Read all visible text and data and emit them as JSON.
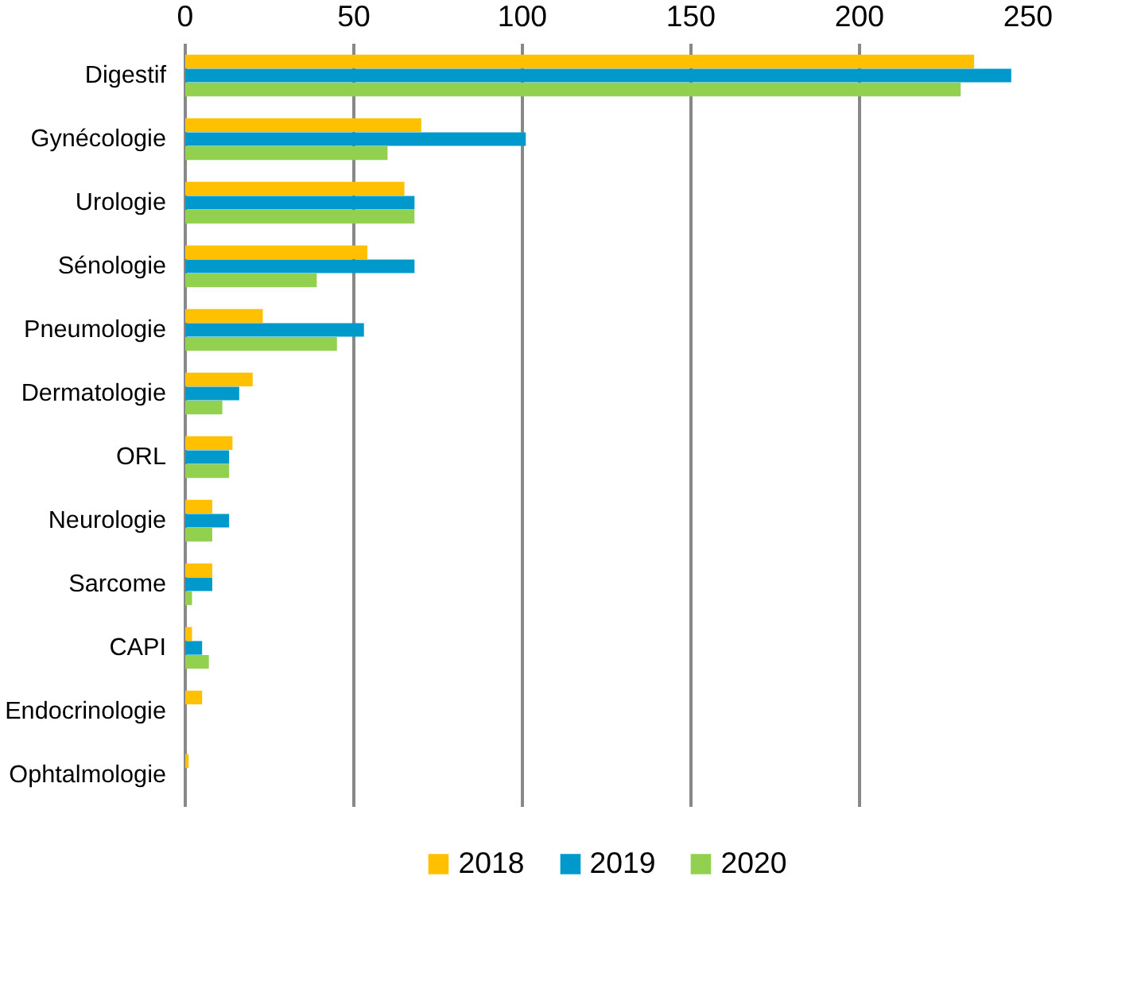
{
  "chart_data": {
    "type": "bar",
    "orientation": "horizontal",
    "categories": [
      "Digestif",
      "Gynécologie",
      "Urologie",
      "Sénologie",
      "Pneumologie",
      "Dermatologie",
      "ORL",
      "Neurologie",
      "Sarcome",
      "CAPI",
      "Endocrinologie",
      "Ophtalmologie"
    ],
    "series": [
      {
        "name": "2018",
        "color": "#ffc000",
        "values": [
          234,
          70,
          65,
          54,
          23,
          20,
          14,
          8,
          8,
          2,
          5,
          1
        ]
      },
      {
        "name": "2019",
        "color": "#0099cc",
        "values": [
          245,
          101,
          68,
          68,
          53,
          16,
          13,
          13,
          8,
          5,
          null,
          null
        ]
      },
      {
        "name": "2020",
        "color": "#92d050",
        "values": [
          230,
          60,
          68,
          39,
          45,
          11,
          13,
          8,
          2,
          7,
          null,
          null
        ]
      }
    ],
    "xlim": [
      0,
      250
    ],
    "xticks": [
      0,
      50,
      100,
      150,
      200,
      250
    ],
    "grid": "x",
    "legend": "bottom"
  }
}
